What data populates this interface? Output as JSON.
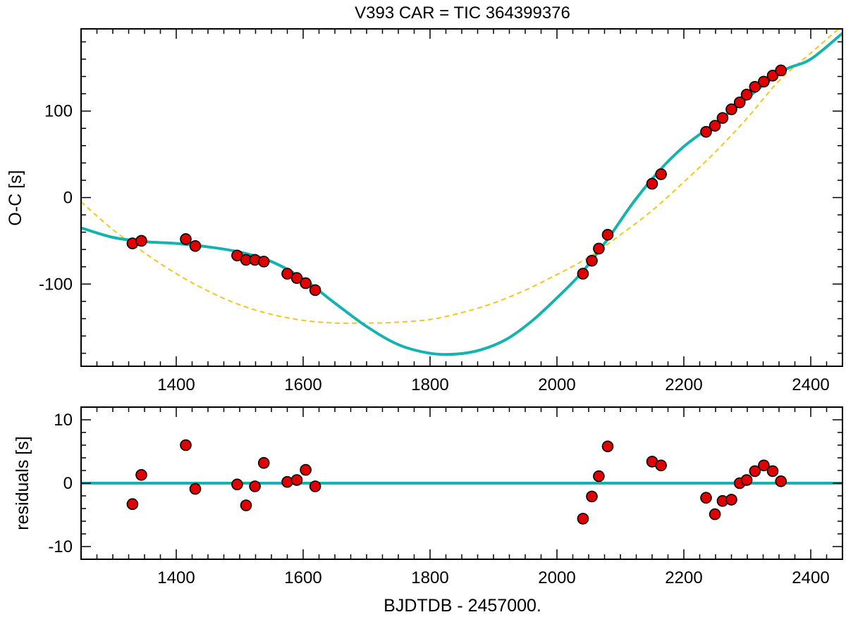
{
  "chart_data": [
    {
      "type": "scatter",
      "title": "V393 CAR = TIC 364399376",
      "xlabel": "",
      "ylabel": "O-C [s]",
      "xlim": [
        1250,
        2450
      ],
      "ylim": [
        -195,
        195
      ],
      "x_ticks": [
        1400,
        1600,
        1800,
        2000,
        2200,
        2400
      ],
      "y_ticks": [
        -100,
        0,
        100
      ],
      "x_minor_step": 25,
      "y_minor_step": 20,
      "series": [
        {
          "kind": "points",
          "color": "#e00000",
          "x": [
            1331,
            1345,
            1415,
            1430,
            1496,
            1510,
            1524,
            1538,
            1575,
            1590,
            1604,
            1619,
            2041,
            2055,
            2066,
            2080,
            2150,
            2164,
            2235,
            2249,
            2261,
            2275,
            2288,
            2299,
            2312,
            2326,
            2340,
            2353
          ],
          "y": [
            -53,
            -50,
            -48,
            -56,
            -67,
            -72,
            -72,
            -74,
            -88,
            -93,
            -99,
            -107,
            -88,
            -73,
            -59,
            -43,
            16,
            27,
            76,
            83,
            92,
            102,
            110,
            119,
            128,
            134,
            141,
            147
          ]
        },
        {
          "kind": "line",
          "color": "#14b3b0",
          "x": [
            1250,
            1300,
            1350,
            1400,
            1450,
            1500,
            1550,
            1600,
            1650,
            1700,
            1750,
            1800,
            1840,
            1880,
            1920,
            1960,
            2000,
            2040,
            2080,
            2120,
            2160,
            2200,
            2240,
            2280,
            2320,
            2360,
            2400,
            2450
          ],
          "y": [
            -35,
            -46,
            -51,
            -53,
            -57,
            -63,
            -74,
            -94,
            -122,
            -149,
            -170,
            -180,
            -181,
            -176,
            -164,
            -143,
            -116,
            -86,
            -48,
            -6,
            30,
            59,
            81,
            103,
            127,
            148,
            160,
            190
          ]
        },
        {
          "kind": "dashed-line",
          "color": "#f5c518",
          "x": [
            1250,
            1300,
            1350,
            1400,
            1450,
            1500,
            1550,
            1600,
            1650,
            1700,
            1720,
            1750,
            1800,
            1850,
            1900,
            1950,
            2000,
            2050,
            2100,
            2150,
            2200,
            2250,
            2300,
            2350,
            2400,
            2450
          ],
          "y": [
            -5,
            -37,
            -64,
            -88,
            -108,
            -124,
            -135,
            -142,
            -145,
            -145,
            -145,
            -144,
            -141,
            -133,
            -122,
            -107,
            -89,
            -69,
            -43,
            -15,
            18,
            53,
            92,
            135,
            167,
            199
          ]
        }
      ]
    },
    {
      "type": "scatter",
      "title": "",
      "xlabel": "BJDTDB - 2457000.",
      "ylabel": "residuals [s]",
      "xlim": [
        1250,
        2450
      ],
      "ylim": [
        -12,
        12
      ],
      "x_ticks": [
        1400,
        1600,
        1800,
        2000,
        2200,
        2400
      ],
      "y_ticks": [
        -10,
        0,
        10
      ],
      "x_minor_step": 25,
      "y_minor_step": 2,
      "series": [
        {
          "kind": "points",
          "color": "#e00000",
          "x": [
            1331,
            1345,
            1415,
            1430,
            1496,
            1510,
            1524,
            1538,
            1575,
            1590,
            1604,
            1619,
            2041,
            2055,
            2066,
            2080,
            2150,
            2164,
            2235,
            2249,
            2261,
            2275,
            2288,
            2299,
            2312,
            2326,
            2340,
            2353
          ],
          "y": [
            -3.3,
            1.3,
            6.0,
            -0.9,
            -0.2,
            -3.5,
            -0.5,
            3.2,
            0.2,
            0.5,
            2.1,
            -0.5,
            -5.6,
            -2.1,
            1.1,
            5.8,
            3.4,
            2.8,
            -2.3,
            -4.9,
            -2.8,
            -2.6,
            0,
            0.5,
            1.9,
            2.8,
            1.9,
            0.3
          ]
        },
        {
          "kind": "line",
          "color": "#14b3b0",
          "x": [
            1250,
            2450
          ],
          "y": [
            0,
            0
          ]
        }
      ]
    }
  ]
}
